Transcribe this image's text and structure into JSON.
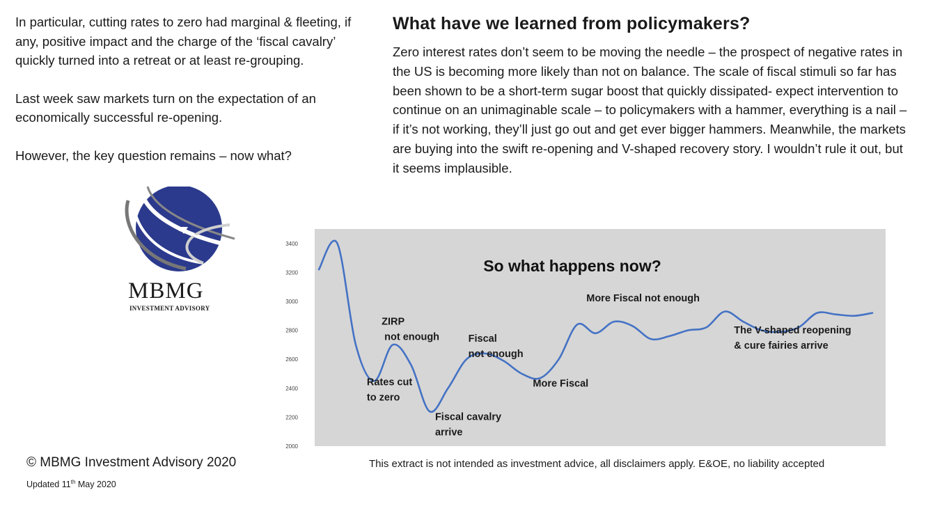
{
  "left_text": {
    "p1": "In particular, cutting rates to zero had marginal & fleeting, if any, positive impact and the charge of the ‘fiscal cavalry’ quickly turned into a retreat or at least re-grouping.",
    "p2": "Last week saw markets turn on the expectation of an economically successful re-opening.",
    "p3": "However, the key question remains – now what?"
  },
  "right_text": {
    "heading": "What have we learned from policymakers?",
    "body": "Zero interest rates don’t seem to be moving the needle – the prospect of negative rates in the US is becoming more likely than not on balance. The scale of fiscal stimuli so far has been shown to be a short-term sugar boost that quickly dissipated- expect intervention to continue on an unimaginable scale – to policymakers with a hammer, everything is a nail – if it’s not working, they’ll just go out and get ever bigger hammers. Meanwhile, the markets are buying into the swift re-opening and V-shaped recovery story. I wouldn’t rule it out, but it seems implausible."
  },
  "logo": {
    "name": "MBMG",
    "subtitle": "INVESTMENT ADVISORY",
    "icon": "globe-arrow-icon",
    "globe_color": "#2b3a8c"
  },
  "chart_data": {
    "type": "line",
    "title": "So what happens now?",
    "xlabel": "",
    "ylabel": "",
    "ylim": [
      2000,
      3500
    ],
    "yticks": [
      2000,
      2200,
      2400,
      2600,
      2800,
      3000,
      3200,
      3400
    ],
    "grid": false,
    "background": "#d6d6d6",
    "line_color": "#4472c4",
    "x": [
      0,
      1,
      2,
      3,
      4,
      5,
      6,
      7,
      8,
      9,
      10,
      11,
      12,
      13,
      14,
      15,
      16,
      17,
      18,
      19,
      20,
      21,
      22,
      23,
      24,
      25,
      26,
      27,
      28,
      29,
      30
    ],
    "values": [
      3220,
      3400,
      2700,
      2450,
      2700,
      2560,
      2240,
      2400,
      2600,
      2640,
      2590,
      2500,
      2470,
      2600,
      2840,
      2780,
      2860,
      2830,
      2740,
      2760,
      2800,
      2820,
      2930,
      2860,
      2800,
      2790,
      2820,
      2920,
      2910,
      2900,
      2920
    ],
    "annotations": [
      {
        "x": 2.6,
        "y": 2420,
        "lines": [
          "Rates cut",
          "to zero"
        ]
      },
      {
        "x": 3.4,
        "y": 2840,
        "lines": [
          "ZIRP",
          " not enough"
        ]
      },
      {
        "x": 6.3,
        "y": 2180,
        "lines": [
          "Fiscal cavalry",
          "arrive"
        ]
      },
      {
        "x": 8.1,
        "y": 2720,
        "lines": [
          "Fiscal",
          "not enough"
        ]
      },
      {
        "x": 11.6,
        "y": 2410,
        "lines": [
          "More Fiscal"
        ]
      },
      {
        "x": 14.5,
        "y": 3000,
        "lines": [
          "More Fiscal not enough"
        ]
      },
      {
        "x": 22.5,
        "y": 2780,
        "lines": [
          "The V-shaped reopening",
          "& cure fairies arrive"
        ]
      }
    ]
  },
  "footer": {
    "copyright": "© MBMG Investment Advisory 2020",
    "updated_prefix": "Updated  11",
    "updated_sup": "th",
    "updated_suffix": " May 2020",
    "disclaimer": "This extract is not intended as investment advice, all disclaimers apply. E&OE, no liability accepted"
  }
}
